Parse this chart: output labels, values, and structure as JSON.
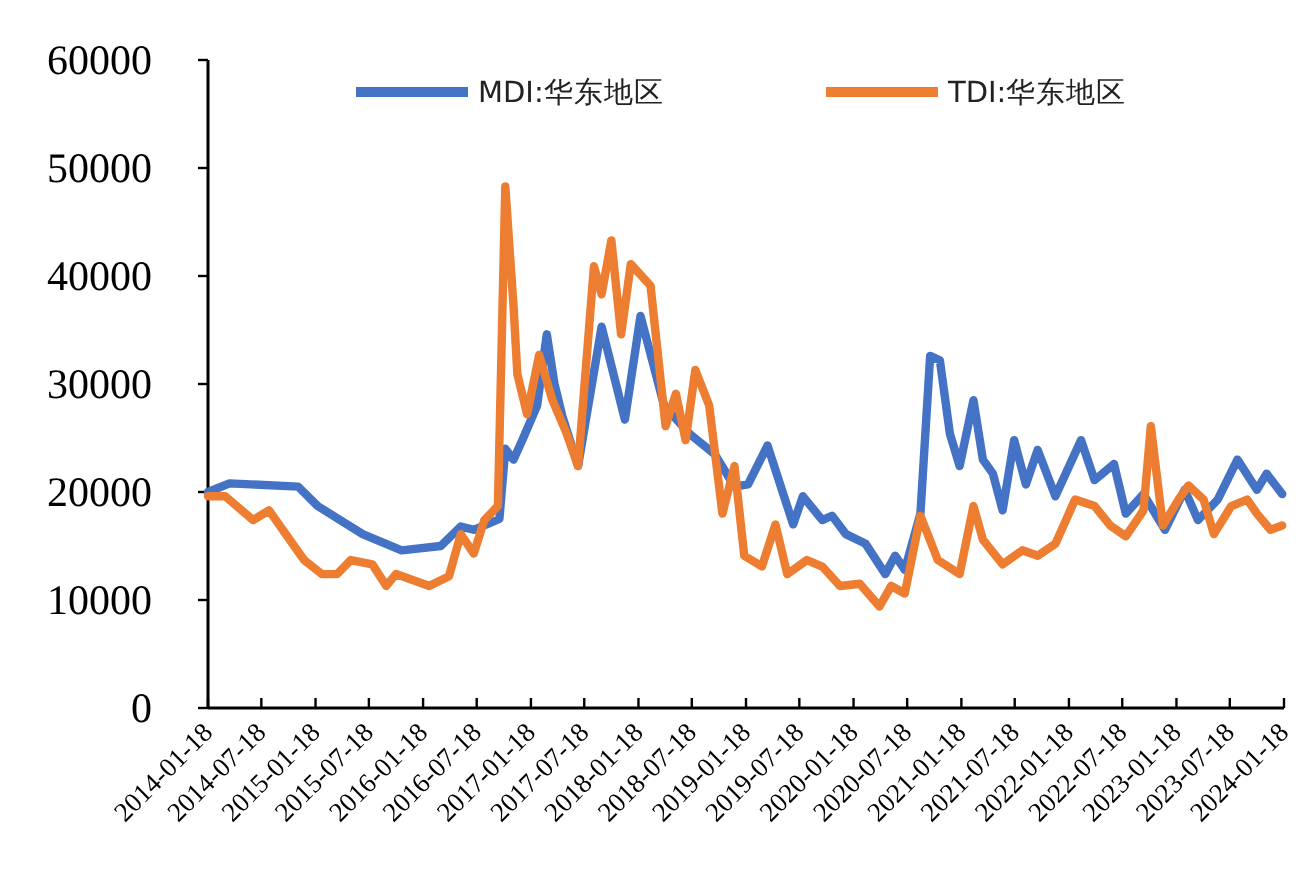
{
  "chart_data": {
    "type": "line",
    "legend": "top",
    "xlim": [
      "2014-01-18",
      "2024-01-18"
    ],
    "xticks": [
      "2014-01-18",
      "2014-07-18",
      "2015-01-18",
      "2015-07-18",
      "2016-01-18",
      "2016-07-18",
      "2017-01-18",
      "2017-07-18",
      "2018-01-18",
      "2018-07-18",
      "2019-01-18",
      "2019-07-18",
      "2020-01-18",
      "2020-07-18",
      "2021-01-18",
      "2021-07-18",
      "2022-01-18",
      "2022-07-18",
      "2023-01-18",
      "2023-07-18",
      "2024-01-18"
    ],
    "ylim": [
      0,
      60000
    ],
    "yticks": [
      0,
      10000,
      20000,
      30000,
      40000,
      50000,
      60000
    ],
    "series": [
      {
        "name": "MDI:华东地区",
        "color": "#4472c4",
        "x": [
          "2014-01-18",
          "2014-04-01",
          "2014-11-20",
          "2015-01-25",
          "2015-06-27",
          "2015-11-06",
          "2016-03-18",
          "2016-05-25",
          "2016-07-08",
          "2016-10-03",
          "2016-10-23",
          "2016-11-20",
          "2016-12-23",
          "2017-02-08",
          "2017-03-13",
          "2017-04-08",
          "2017-05-05",
          "2017-06-27",
          "2017-09-15",
          "2017-12-03",
          "2018-01-25",
          "2018-04-15",
          "2018-07-10",
          "2018-10-04",
          "2018-12-10",
          "2019-01-25",
          "2019-04-01",
          "2019-06-27",
          "2019-07-30",
          "2019-10-04",
          "2019-11-06",
          "2019-12-23",
          "2020-02-28",
          "2020-05-05",
          "2020-06-07",
          "2020-07-10",
          "2020-09-01",
          "2020-10-04",
          "2020-11-06",
          "2020-12-10",
          "2021-01-12",
          "2021-02-28",
          "2021-04-01",
          "2021-05-05",
          "2021-06-07",
          "2021-07-16",
          "2021-08-25",
          "2021-10-04",
          "2021-12-03",
          "2022-02-28",
          "2022-04-15",
          "2022-06-20",
          "2022-07-30",
          "2022-09-28",
          "2022-12-10",
          "2023-02-15",
          "2023-04-01",
          "2023-06-07",
          "2023-08-13",
          "2023-10-18",
          "2023-11-20",
          "2024-01-12"
        ],
        "values": [
          20000,
          20800,
          20500,
          18700,
          16100,
          14600,
          15000,
          16800,
          16500,
          17500,
          24000,
          23000,
          25000,
          28000,
          34600,
          30000,
          27000,
          22400,
          35300,
          26700,
          36300,
          28000,
          25400,
          23500,
          20500,
          20700,
          24300,
          17000,
          19600,
          17400,
          17800,
          16100,
          15200,
          12400,
          14100,
          12800,
          18000,
          32600,
          32200,
          25400,
          22400,
          28500,
          23000,
          21700,
          18300,
          24800,
          20700,
          23900,
          19600,
          24800,
          21100,
          22600,
          18000,
          19800,
          16500,
          20200,
          17400,
          19300,
          23000,
          20200,
          21700,
          19800
        ]
      },
      {
        "name": "TDI:华东地区",
        "color": "#ed7d31",
        "x": [
          "2014-01-18",
          "2014-03-18",
          "2014-06-20",
          "2014-08-13",
          "2014-12-10",
          "2015-02-08",
          "2015-04-01",
          "2015-05-18",
          "2015-07-30",
          "2015-09-15",
          "2015-10-18",
          "2016-02-08",
          "2016-04-15",
          "2016-05-25",
          "2016-07-08",
          "2016-08-13",
          "2016-09-28",
          "2016-10-23",
          "2016-11-20",
          "2016-12-03",
          "2017-01-05",
          "2017-02-15",
          "2017-04-01",
          "2017-05-18",
          "2017-06-27",
          "2017-08-20",
          "2017-09-15",
          "2017-10-18",
          "2017-11-20",
          "2017-12-23",
          "2018-02-28",
          "2018-04-20",
          "2018-05-25",
          "2018-06-27",
          "2018-07-30",
          "2018-09-15",
          "2018-10-30",
          "2018-12-10",
          "2019-01-12",
          "2019-03-13",
          "2019-04-28",
          "2019-06-07",
          "2019-08-13",
          "2019-10-04",
          "2019-12-03",
          "2020-02-08",
          "2020-04-15",
          "2020-05-25",
          "2020-07-10",
          "2020-09-01",
          "2020-10-30",
          "2021-01-12",
          "2021-02-28",
          "2021-04-01",
          "2021-06-07",
          "2021-08-13",
          "2021-10-04",
          "2021-12-03",
          "2022-02-08",
          "2022-04-15",
          "2022-06-07",
          "2022-07-30",
          "2022-09-28",
          "2022-10-23",
          "2022-12-03",
          "2023-01-25",
          "2023-02-28",
          "2023-04-20",
          "2023-05-25",
          "2023-07-23",
          "2023-09-15",
          "2023-10-18",
          "2023-12-03",
          "2024-01-12"
        ],
        "values": [
          19600,
          19600,
          17400,
          18300,
          13700,
          12400,
          12400,
          13700,
          13300,
          11300,
          12400,
          11300,
          12200,
          16100,
          14300,
          17400,
          18700,
          48300,
          37200,
          30900,
          27200,
          32700,
          28500,
          25500,
          22400,
          40900,
          38300,
          43300,
          34600,
          41100,
          39100,
          26100,
          29100,
          24800,
          31300,
          28000,
          18000,
          22400,
          14100,
          13100,
          17000,
          12400,
          13700,
          13100,
          11300,
          11500,
          9400,
          11300,
          10600,
          17800,
          13700,
          12400,
          18700,
          15600,
          13300,
          14600,
          14100,
          15200,
          19300,
          18700,
          16900,
          15900,
          18300,
          26100,
          16900,
          19300,
          20600,
          19300,
          16100,
          18700,
          19300,
          18000,
          16500,
          16900
        ]
      }
    ]
  }
}
